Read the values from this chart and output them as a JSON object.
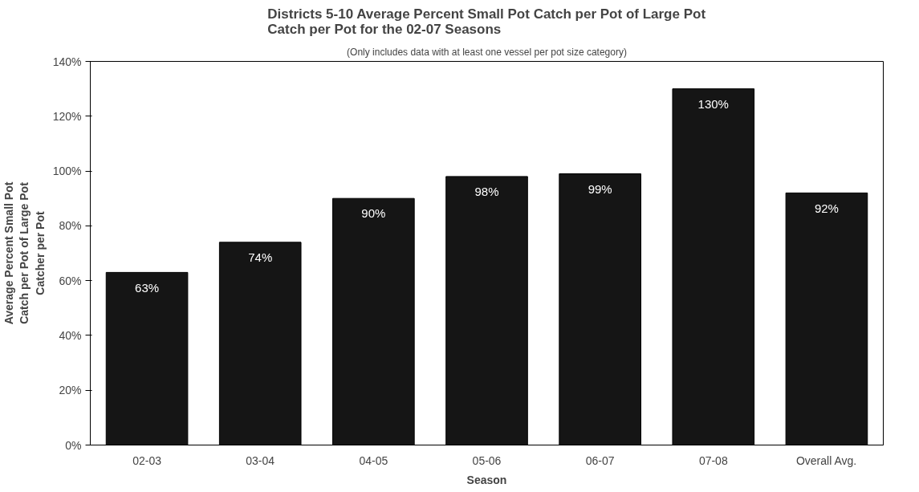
{
  "chart_data": {
    "type": "bar",
    "title": "Districts 5-10 Average Percent Small Pot Catch per Pot of Large Pot Catch per Pot for the 02-07 Seasons",
    "subtitle": "(Only includes data with at least one vessel per pot size category)",
    "xlabel": "Season",
    "ylabel": "Average Percent Small Pot Catch per Pot of Large Pot Catcher per Pot",
    "categories": [
      "02-03",
      "03-04",
      "04-05",
      "05-06",
      "06-07",
      "07-08",
      "Overall Avg."
    ],
    "values": [
      63,
      74,
      90,
      98,
      99,
      130,
      92
    ],
    "value_labels": [
      "63%",
      "74%",
      "90%",
      "98%",
      "99%",
      "130%",
      "92%"
    ],
    "color": "#151515",
    "ylim": [
      0,
      140
    ],
    "yticks": [
      {
        "value": 0,
        "label": "0%"
      },
      {
        "value": 20,
        "label": "20%"
      },
      {
        "value": 40,
        "label": "40%"
      },
      {
        "value": 60,
        "label": "60%"
      },
      {
        "value": 80,
        "label": "80%"
      },
      {
        "value": 100,
        "label": "100%"
      },
      {
        "value": 120,
        "label": "120%"
      },
      {
        "value": 140,
        "label": "140%"
      }
    ],
    "grid": false
  }
}
